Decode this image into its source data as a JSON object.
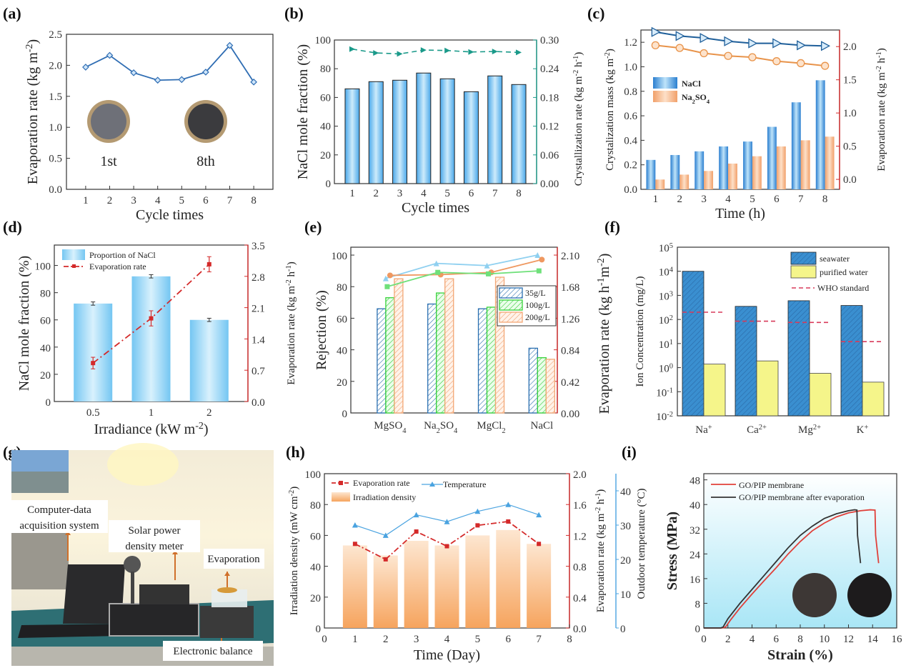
{
  "panel_labels": [
    "(a)",
    "(b)",
    "(c)",
    "(d)",
    "(e)",
    "(f)",
    "(g)",
    "(h)",
    "(i)"
  ],
  "colors": {
    "a_line": "#2f6db3",
    "b_bar": "#5bb8f0",
    "b_line": "#1b9a8a",
    "c_nacl": "#3f8fd8",
    "c_na2so4": "#f6b783",
    "c_tri": "#1f5f9a",
    "c_circ": "#e8934a",
    "red_axis": "#d42a2a",
    "d_bar": "#7fcff4",
    "e_35": "#2a6fb0",
    "e_100": "#37d23a",
    "e_200": "#f3a775",
    "e_line_blue": "#8fd0f0",
    "e_line_orange": "#ef9860",
    "e_line_green": "#6fe07a",
    "f_sea": "#3a8fd0",
    "f_pur": "#f5f58a",
    "f_who": "#d83a5a",
    "h_bar": "#f6b070",
    "h_temp": "#4aa3e0",
    "i_red": "#e0403a",
    "i_black": "#333333"
  },
  "chart_data": [
    {
      "id": "a",
      "type": "line",
      "title": "",
      "xlabel": "Cycle times",
      "ylabel": "Evaporation rate (kg m-2)",
      "x": [
        1,
        2,
        3,
        4,
        5,
        6,
        7,
        8
      ],
      "series": [
        {
          "name": "Evaporation rate",
          "values": [
            1.97,
            2.16,
            1.88,
            1.76,
            1.77,
            1.89,
            2.32,
            1.73
          ]
        }
      ],
      "xlim": [
        0.2,
        8.8
      ],
      "ylim": [
        0,
        2.5
      ],
      "yticks": [
        0.0,
        0.5,
        1.0,
        1.5,
        2.0,
        2.5
      ],
      "ytick_labels": [
        "0.0",
        "0.5",
        "1.0",
        "1.5",
        "2.0",
        "2.5"
      ],
      "annotations": [
        "1st",
        "8th"
      ]
    },
    {
      "id": "b",
      "type": "bar",
      "xlabel": "Cycle times",
      "ylabel": "NaCl mole fraction (%)",
      "y2label": "Crystallization rate (kg m-2 h-1)",
      "categories": [
        "1",
        "2",
        "3",
        "4",
        "5",
        "6",
        "7",
        "8"
      ],
      "series": [
        {
          "name": "NaCl mole fraction",
          "axis": "left",
          "values": [
            66,
            71,
            72,
            77,
            73,
            64,
            75,
            69
          ]
        },
        {
          "name": "Crystallization rate",
          "axis": "right",
          "values": [
            0.281,
            0.273,
            0.271,
            0.279,
            0.278,
            0.275,
            0.276,
            0.274
          ]
        }
      ],
      "ylim": [
        0,
        100
      ],
      "yticks": [
        0,
        20,
        40,
        60,
        80,
        100
      ],
      "y2lim": [
        0,
        0.3
      ],
      "y2ticks": [
        "0.00",
        "0.06",
        "0.12",
        "0.18",
        "0.24",
        "0.30"
      ]
    },
    {
      "id": "c",
      "type": "bar",
      "xlabel": "Time (h)",
      "ylabel": "Crystalization mass (kg m-2)",
      "y2label": "Evaporation rate (kg m-2 h-1)",
      "categories": [
        "1",
        "2",
        "3",
        "4",
        "5",
        "6",
        "7",
        "8"
      ],
      "legend": [
        "NaCl",
        "Na2SO4"
      ],
      "series": [
        {
          "name": "NaCl",
          "axis": "left",
          "values": [
            0.24,
            0.28,
            0.31,
            0.35,
            0.39,
            0.51,
            0.71,
            0.89
          ]
        },
        {
          "name": "Na2SO4",
          "axis": "left",
          "values": [
            0.08,
            0.12,
            0.15,
            0.21,
            0.27,
            0.35,
            0.4,
            0.43
          ]
        },
        {
          "name": "NaCl evaporation",
          "axis": "right",
          "values": [
            2.22,
            2.16,
            2.13,
            2.08,
            2.05,
            2.05,
            2.02,
            2.01
          ]
        },
        {
          "name": "Na2SO4 evaporation",
          "axis": "right",
          "values": [
            2.02,
            1.98,
            1.9,
            1.86,
            1.84,
            1.78,
            1.75,
            1.71
          ]
        }
      ],
      "ylim": [
        0,
        1.3
      ],
      "yticks": [
        "0.0",
        "0.2",
        "0.4",
        "0.6",
        "0.8",
        "1.0",
        "1.2"
      ],
      "y2lim": [
        -0.15,
        2.25
      ],
      "y2ticks": [
        "0.0",
        "0.5",
        "1.0",
        "1.5",
        "2.0"
      ]
    },
    {
      "id": "d",
      "type": "bar",
      "xlabel": "Irradiance (kW m-2)",
      "ylabel": "NaCl mole fraction (%)",
      "y2label": "Evaporation rate (kg m-2 h-1)",
      "categories": [
        "0.5",
        "1",
        "2"
      ],
      "legend": [
        "Proportion of NaCl",
        "Evaporation rate"
      ],
      "series": [
        {
          "name": "Proportion of NaCl",
          "axis": "left",
          "values": [
            72,
            92,
            60
          ],
          "errors": [
            1.2,
            1.2,
            1.2
          ]
        },
        {
          "name": "Evaporation rate",
          "axis": "right",
          "values": [
            0.86,
            1.86,
            3.07
          ],
          "errors": [
            0.13,
            0.17,
            0.17
          ]
        }
      ],
      "ylim": [
        0,
        115
      ],
      "yticks": [
        0,
        20,
        40,
        60,
        80,
        100
      ],
      "y2lim": [
        0,
        3.5
      ],
      "y2ticks": [
        "0.0",
        "0.7",
        "1.4",
        "2.1",
        "2.8",
        "3.5"
      ]
    },
    {
      "id": "e",
      "type": "bar",
      "ylabel": "Rejection (%)",
      "y2label": "Evaporation rate (kg h-1m-2)",
      "categories": [
        "MgSO4",
        "Na2SO4",
        "MgCl2",
        "NaCl"
      ],
      "legend": [
        "35g/L",
        "100g/L",
        "200g/L"
      ],
      "series": [
        {
          "name": "35g/L",
          "values": [
            66,
            69,
            66,
            41
          ]
        },
        {
          "name": "100g/L",
          "values": [
            73,
            76,
            67,
            35
          ]
        },
        {
          "name": "200g/L",
          "values": [
            85,
            85,
            86,
            34
          ]
        }
      ],
      "lines": [
        {
          "name": "35g/L evaporation",
          "values": [
            1.79,
            1.99,
            1.96,
            2.1
          ]
        },
        {
          "name": "200g/L evaporation",
          "values": [
            1.83,
            1.84,
            1.87,
            2.04
          ]
        },
        {
          "name": "100g/L evaporation",
          "values": [
            1.68,
            1.87,
            1.85,
            1.89
          ]
        }
      ],
      "ylim": [
        0,
        105
      ],
      "yticks": [
        0,
        20,
        40,
        60,
        80,
        100
      ],
      "y2lim": [
        0,
        2.205
      ],
      "y2ticks": [
        "0.00",
        "0.42",
        "0.84",
        "1.26",
        "1.68",
        "2.10"
      ]
    },
    {
      "id": "f",
      "type": "bar",
      "ylabel": "Ion Concentration (mg/L)",
      "yscale": "log",
      "categories": [
        "Na+",
        "Ca2+",
        "Mg2+",
        "K+"
      ],
      "legend": [
        "seawater",
        "purified water",
        "WHO standard"
      ],
      "series": [
        {
          "name": "seawater",
          "values": [
            10000,
            350,
            600,
            380
          ]
        },
        {
          "name": "purified water",
          "values": [
            1.4,
            1.9,
            0.58,
            0.25
          ]
        },
        {
          "name": "WHO standard",
          "values": [
            200,
            85,
            75,
            12
          ]
        }
      ],
      "ylim_exp": [
        -2,
        5
      ],
      "ytick_exponents": [
        "-2",
        "-1",
        "0",
        "1",
        "2",
        "3",
        "4",
        "5"
      ]
    },
    {
      "id": "h",
      "type": "bar",
      "xlabel": "Time (Day)",
      "ylabel": "Irradiation density (mW cm-2)",
      "y2label": "Evaporation rate (kg m-2 h-1)",
      "y3label": "Outdoor temperature (°C)",
      "categories": [
        "1",
        "2",
        "3",
        "4",
        "5",
        "6",
        "7"
      ],
      "xticks": [
        "0",
        "1",
        "2",
        "3",
        "4",
        "5",
        "6",
        "7",
        "8"
      ],
      "legend": [
        "Evaporation rate",
        "Temperature",
        "Irradiation density"
      ],
      "series": [
        {
          "name": "Irradiation density",
          "axis": "left",
          "values": [
            53.5,
            47,
            56.5,
            53.5,
            60,
            63.5,
            54.5
          ]
        },
        {
          "name": "Evaporation rate",
          "axis": "right",
          "values": [
            1.09,
            0.89,
            1.25,
            1.06,
            1.33,
            1.38,
            1.09
          ]
        },
        {
          "name": "Temperature",
          "axis": "right2",
          "values": [
            30,
            27,
            33,
            31,
            34,
            36,
            33
          ]
        }
      ],
      "ylim": [
        0,
        100
      ],
      "yticks": [
        0,
        20,
        40,
        60,
        80,
        100
      ],
      "y2lim": [
        0,
        2.0
      ],
      "y2ticks": [
        "0.0",
        "0.4",
        "0.8",
        "1.2",
        "1.6",
        "2.0"
      ],
      "y3lim": [
        0,
        45
      ],
      "y3ticks": [
        "0",
        "10",
        "20",
        "30",
        "40"
      ]
    },
    {
      "id": "i",
      "type": "line",
      "xlabel": "Strain (%)",
      "ylabel": "Stress (MPa)",
      "legend": [
        "GO/PIP membrane",
        "GO/PIP membrane after evaporation"
      ],
      "series": [
        {
          "name": "GO/PIP membrane",
          "x": [
            0,
            1.5,
            1.8,
            2.2,
            3,
            4,
            5,
            6,
            7,
            8,
            9,
            10,
            11,
            12,
            13,
            13.8,
            14.2,
            14.25,
            14.5
          ],
          "y": [
            0,
            0,
            0.3,
            2.5,
            6.5,
            11,
            15.3,
            19.5,
            24,
            28,
            31.5,
            34,
            36,
            37.3,
            38,
            38.3,
            38.2,
            30,
            21
          ]
        },
        {
          "name": "GO/PIP membrane after evaporation",
          "x": [
            0,
            1.4,
            1.6,
            2,
            3,
            4,
            5,
            6,
            7,
            8,
            9,
            10,
            11,
            12,
            12.5,
            12.7,
            12.75,
            13
          ],
          "y": [
            0,
            0,
            0.3,
            3,
            8,
            12.5,
            17,
            21.5,
            26,
            30,
            33,
            35.5,
            37,
            38,
            38.3,
            38.2,
            30,
            21
          ]
        }
      ],
      "xlim": [
        0,
        16
      ],
      "xticks": [
        "0",
        "2",
        "4",
        "6",
        "8",
        "10",
        "12",
        "14",
        "16"
      ],
      "ylim": [
        0,
        50
      ],
      "yticks": [
        "0",
        "8",
        "16",
        "24",
        "32",
        "40",
        "48"
      ]
    }
  ],
  "photo_g": {
    "labels": [
      "Computer-data",
      "acquisition system",
      "Solar power",
      "density meter",
      "Evaporation",
      "Electronic balance"
    ]
  }
}
